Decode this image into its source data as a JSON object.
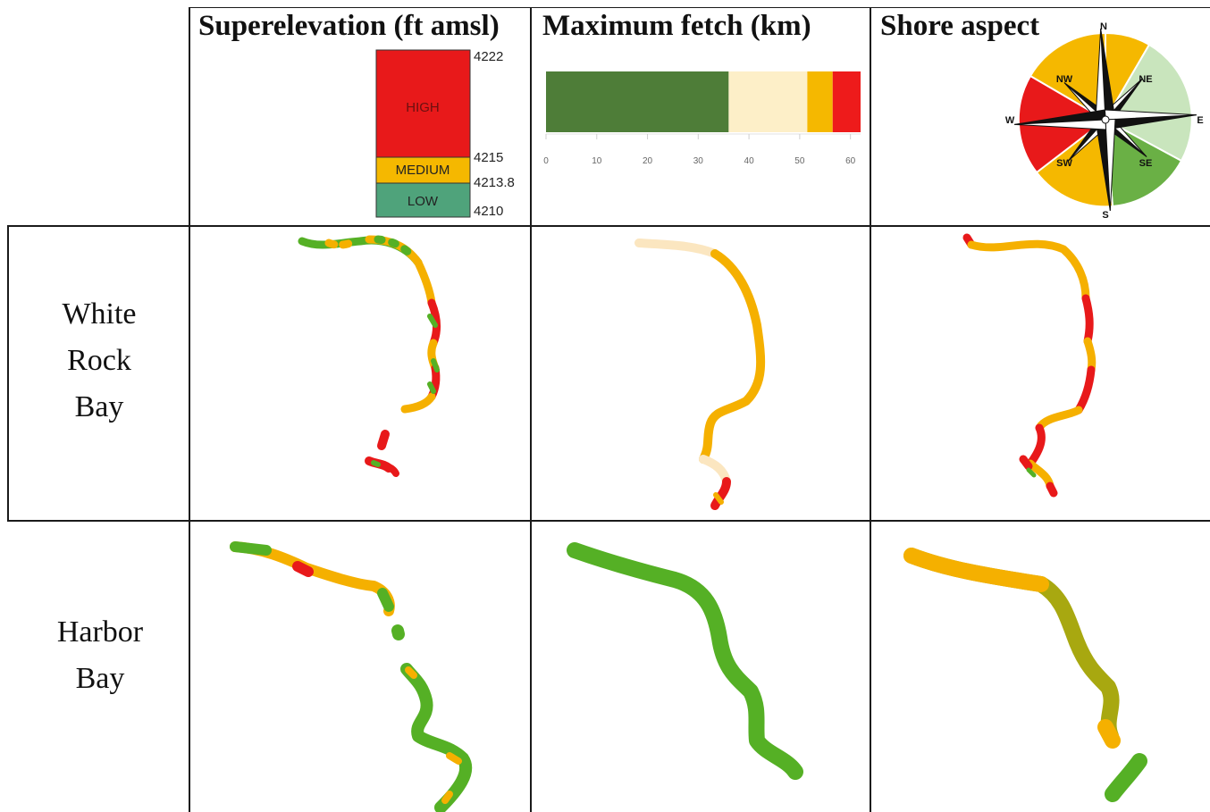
{
  "headers": {
    "superelevation": "Superelevation (ft amsl)",
    "fetch": "Maximum fetch (km)",
    "aspect": "Shore aspect"
  },
  "superelevation_legend": {
    "classes": [
      {
        "label": "HIGH",
        "color": "#e8191a"
      },
      {
        "label": "MEDIUM",
        "color": "#f5b800"
      },
      {
        "label": "LOW",
        "color": "#4fa37b"
      }
    ],
    "breaks": [
      "4222",
      "4215",
      "4213.8",
      "4210"
    ]
  },
  "fetch_legend": {
    "segments": [
      {
        "from": 0,
        "to": 36,
        "color": "#4e7d38"
      },
      {
        "from": 36,
        "to": 51.5,
        "color": "#fdefc8"
      },
      {
        "from": 51.5,
        "to": 56.5,
        "color": "#f5b800"
      },
      {
        "from": 56.5,
        "to": 62,
        "color": "#ee1b1b"
      }
    ],
    "ticks": [
      "0",
      "10",
      "20",
      "30",
      "40",
      "50",
      "60"
    ]
  },
  "aspect_legend": {
    "directions": {
      "n": "N",
      "ne": "NE",
      "e": "E",
      "se": "SE",
      "s": "S",
      "sw": "SW",
      "w": "W",
      "nw": "NW"
    },
    "sector_colors": {
      "nne": "#f5b800",
      "ne": "#c9e5bd",
      "se": "#6ab045",
      "s": "#f5b800",
      "w": "#e8191a",
      "nw": "#f5b800"
    }
  },
  "rows": [
    {
      "label_lines": [
        "White",
        "Rock",
        "Bay"
      ]
    },
    {
      "label_lines": [
        "Harbor",
        "Bay"
      ]
    }
  ],
  "colors": {
    "red": "#e8191a",
    "orange": "#f5b000",
    "green": "#55b025",
    "pale": "#fbe6c0",
    "olive": "#a8a810"
  }
}
